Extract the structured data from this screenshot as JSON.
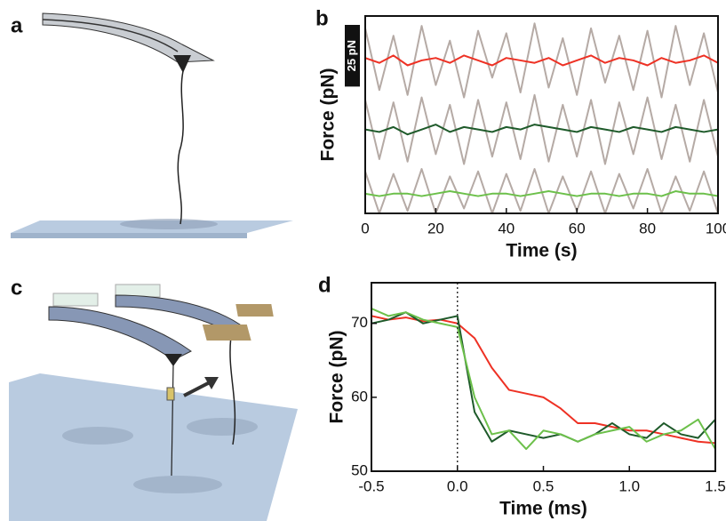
{
  "panels": [
    "a",
    "b",
    "c",
    "d"
  ],
  "chart_data": [
    {
      "type": "line",
      "xlabel": "Time (s)",
      "ylabel": "Force (pN)",
      "xlim": [
        0,
        100
      ],
      "xticks": [
        0,
        20,
        40,
        60,
        80,
        100
      ],
      "ylim": [
        0,
        80
      ],
      "scale_bar": {
        "value": 25,
        "label": "25 pN"
      },
      "x": [
        0,
        4,
        8,
        12,
        16,
        20,
        24,
        28,
        32,
        36,
        40,
        44,
        48,
        52,
        56,
        60,
        64,
        68,
        72,
        76,
        80,
        84,
        88,
        92,
        96,
        100
      ],
      "series": [
        {
          "color": "#b5aaa5",
          "values": [
            75,
            50,
            72,
            48,
            76,
            52,
            70,
            47,
            74,
            55,
            73,
            49,
            77,
            51,
            71,
            48,
            75,
            53,
            72,
            50,
            74,
            47,
            76,
            52,
            73,
            49
          ]
        },
        {
          "color": "#b5aaa5",
          "values": [
            46,
            22,
            45,
            21,
            47,
            24,
            44,
            20,
            46,
            23,
            45,
            22,
            48,
            21,
            44,
            23,
            46,
            20,
            45,
            24,
            47,
            22,
            44,
            21,
            46,
            23
          ]
        },
        {
          "color": "#b5aaa5",
          "values": [
            17,
            0,
            16,
            1,
            18,
            0,
            15,
            2,
            17,
            0,
            16,
            1,
            18,
            0,
            15,
            1,
            17,
            0,
            16,
            2,
            18,
            0,
            15,
            1,
            17,
            0
          ]
        },
        {
          "color": "#ffffff",
          "values": [
            51,
            45,
            52,
            44,
            50,
            46,
            53,
            44,
            49,
            47,
            52,
            45,
            51,
            44,
            50,
            46,
            52,
            45,
            49,
            47,
            51,
            44,
            52,
            46,
            50,
            45
          ]
        },
        {
          "color": "#ffffff",
          "values": [
            21,
            15,
            20,
            14,
            22,
            16,
            19,
            15,
            21,
            14,
            20,
            16,
            22,
            15,
            19,
            14,
            21,
            16,
            20,
            15,
            22,
            14,
            20,
            16,
            19,
            15
          ]
        },
        {
          "color": "#ee3124",
          "values": [
            63,
            61,
            64,
            60,
            62,
            63,
            61,
            64,
            62,
            60,
            63,
            62,
            61,
            63,
            60,
            62,
            64,
            61,
            63,
            62,
            60,
            63,
            61,
            62,
            64,
            61
          ]
        },
        {
          "color": "#1e5a2a",
          "values": [
            34,
            33,
            35,
            32,
            34,
            36,
            33,
            35,
            34,
            33,
            35,
            34,
            36,
            35,
            34,
            33,
            35,
            34,
            33,
            35,
            34,
            33,
            35,
            34,
            33,
            34
          ]
        },
        {
          "color": "#6cc04a",
          "values": [
            8,
            7,
            8,
            8,
            7,
            8,
            9,
            8,
            7,
            8,
            8,
            7,
            8,
            9,
            8,
            7,
            8,
            8,
            7,
            8,
            8,
            7,
            9,
            8,
            8,
            7
          ]
        }
      ]
    },
    {
      "type": "line",
      "xlabel": "Time (ms)",
      "ylabel": "Force (pN)",
      "xlim": [
        -0.5,
        1.5
      ],
      "xticks": [
        -0.5,
        {
          "value": 0,
          "label": "0.0"
        },
        0.5,
        {
          "value": 1,
          "label": "1.0"
        },
        1.5
      ],
      "ylim": [
        50,
        75.5
      ],
      "yticks": [
        50,
        60,
        70
      ],
      "marker_x": 0,
      "x": [
        -0.5,
        -0.4,
        -0.3,
        -0.2,
        -0.1,
        0,
        0.1,
        0.2,
        0.3,
        0.4,
        0.5,
        0.6,
        0.7,
        0.8,
        0.9,
        1.0,
        1.1,
        1.2,
        1.3,
        1.4,
        1.5
      ],
      "series": [
        {
          "color": "#ee3124",
          "values": [
            71,
            70.5,
            70.8,
            70.3,
            70.5,
            70,
            68,
            64,
            61,
            60.5,
            60,
            58.5,
            56.5,
            56.5,
            56,
            55.5,
            55.5,
            55,
            54.5,
            54,
            53.8
          ]
        },
        {
          "color": "#1e5a2a",
          "values": [
            70,
            70.5,
            71.5,
            70,
            70.5,
            71,
            58,
            54,
            55.5,
            55,
            54.5,
            55,
            54,
            55,
            56.5,
            55,
            54.5,
            56.5,
            55,
            54.5,
            57
          ]
        },
        {
          "color": "#6cc04a",
          "values": [
            72,
            71,
            71.5,
            70.5,
            70,
            69.5,
            60,
            55,
            55.5,
            53,
            55.5,
            55,
            54,
            55,
            55.5,
            56,
            54,
            55,
            55.5,
            57,
            53
          ]
        }
      ]
    }
  ]
}
